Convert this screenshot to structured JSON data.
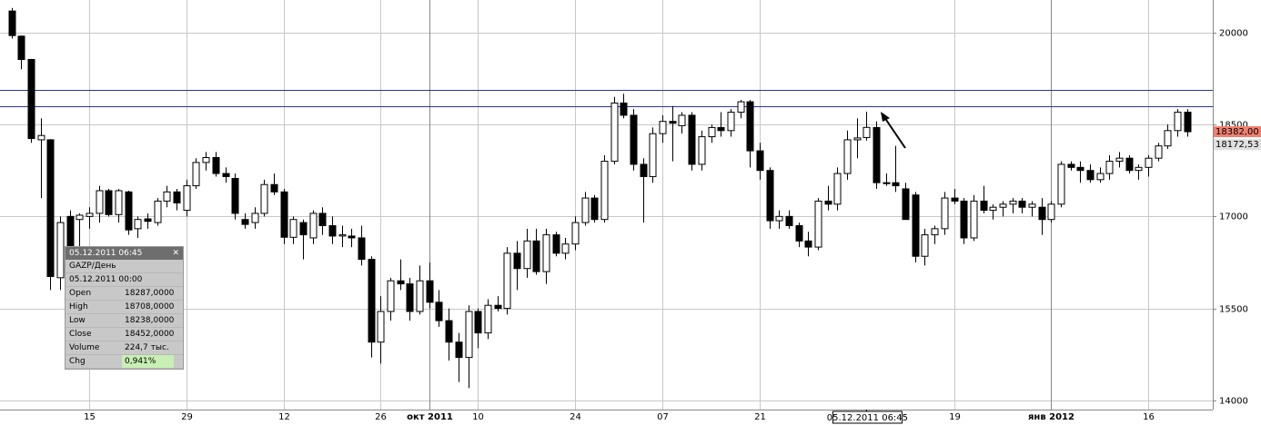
{
  "chart_data": {
    "type": "candlestick",
    "categories": [
      null,
      null,
      null,
      null,
      null,
      null,
      null,
      null,
      "15",
      null,
      null,
      null,
      null,
      null,
      null,
      null,
      null,
      null,
      "29",
      null,
      null,
      null,
      null,
      null,
      null,
      null,
      null,
      null,
      "12",
      null,
      null,
      null,
      null,
      null,
      null,
      null,
      null,
      null,
      "26",
      null,
      null,
      null,
      null,
      "окт 2011",
      null,
      null,
      null,
      null,
      "10",
      null,
      null,
      null,
      null,
      null,
      null,
      null,
      null,
      null,
      "24",
      null,
      null,
      null,
      null,
      null,
      null,
      null,
      null,
      "07",
      null,
      null,
      null,
      null,
      null,
      null,
      null,
      null,
      null,
      "21",
      null,
      null,
      null,
      null,
      null,
      null,
      null,
      null,
      null,
      null,
      null,
      null,
      null,
      null,
      null,
      null,
      null,
      null,
      null,
      "19",
      null,
      null,
      null,
      null,
      null,
      null,
      null,
      null,
      null,
      "янв 2012",
      null,
      null,
      null,
      null,
      null,
      null,
      null,
      null,
      null,
      "16",
      null,
      null,
      null,
      null
    ],
    "open": [
      20350,
      19940,
      19560,
      18250,
      18250,
      16000,
      17000,
      16950,
      17000,
      17050,
      17420,
      17030,
      17400,
      16800,
      16960,
      16900,
      17250,
      17400,
      17100,
      17500,
      17880,
      17960,
      17700,
      17620,
      16950,
      16900,
      17050,
      17520,
      17400,
      16660,
      16900,
      16650,
      17050,
      16850,
      16680,
      16680,
      16650,
      16300,
      14950,
      15450,
      15950,
      15900,
      15450,
      15950,
      15600,
      15300,
      14950,
      14700,
      15450,
      15100,
      15550,
      15500,
      16400,
      16150,
      16600,
      16100,
      16700,
      16400,
      16550,
      16900,
      17300,
      16950,
      17900,
      18850,
      18650,
      17850,
      17650,
      18350,
      18550,
      18480,
      18650,
      17850,
      18300,
      18450,
      18400,
      18700,
      18870,
      18070,
      17750,
      16930,
      17000,
      16850,
      16600,
      16500,
      17250,
      17200,
      17700,
      18250,
      18287,
      18450,
      17550,
      17550,
      17450,
      17350,
      16350,
      16700,
      16800,
      17300,
      17250,
      16650,
      17250,
      17100,
      17150,
      17200,
      17250,
      17150,
      17150,
      16950,
      17200,
      17850,
      17800,
      17750,
      17600,
      17700,
      17900,
      17950,
      17750,
      17800,
      17950,
      18150,
      18400,
      18700
    ],
    "high": [
      20400,
      19950,
      19570,
      18600,
      18260,
      17000,
      17100,
      17050,
      17150,
      17500,
      17450,
      17450,
      17420,
      17000,
      17050,
      17300,
      17500,
      17450,
      17600,
      17950,
      18050,
      18050,
      17800,
      17700,
      17050,
      17150,
      17600,
      17700,
      17450,
      17000,
      16950,
      17100,
      17150,
      17000,
      16850,
      16800,
      16850,
      16350,
      15700,
      16000,
      16300,
      16000,
      16200,
      16250,
      15800,
      15500,
      15100,
      15550,
      15500,
      15650,
      15700,
      16500,
      16600,
      16800,
      16800,
      16800,
      16750,
      16650,
      17000,
      17400,
      17350,
      18000,
      18950,
      19000,
      18750,
      17950,
      18450,
      18650,
      18800,
      18700,
      18700,
      18400,
      18500,
      18700,
      18750,
      18900,
      18900,
      18200,
      17800,
      17100,
      17100,
      16900,
      16750,
      17300,
      17500,
      17800,
      18400,
      18600,
      18708,
      18550,
      17700,
      18150,
      17550,
      17400,
      16800,
      16850,
      17400,
      17450,
      17300,
      17350,
      17500,
      17200,
      17250,
      17300,
      17300,
      17250,
      17300,
      17250,
      17900,
      17900,
      17900,
      17850,
      17800,
      18000,
      18050,
      18000,
      17850,
      18000,
      18200,
      18500,
      18750,
      18750
    ],
    "low": [
      19900,
      19400,
      18200,
      17300,
      15800,
      15800,
      15750,
      16500,
      16800,
      16900,
      17000,
      16900,
      16700,
      16650,
      16800,
      16850,
      17150,
      17100,
      17000,
      17450,
      17750,
      17650,
      17550,
      16950,
      16800,
      16800,
      17000,
      17350,
      16550,
      16550,
      16300,
      16550,
      16700,
      16550,
      16500,
      16500,
      16200,
      14700,
      14600,
      15300,
      15800,
      15300,
      15400,
      15500,
      15200,
      14650,
      14300,
      14200,
      14850,
      15000,
      15450,
      15400,
      15800,
      16000,
      16050,
      15900,
      16350,
      16300,
      16450,
      16850,
      16900,
      16900,
      17850,
      18600,
      17750,
      16900,
      17550,
      18200,
      17900,
      18350,
      17750,
      17750,
      18200,
      18300,
      18300,
      18600,
      17800,
      17600,
      16800,
      16800,
      16800,
      16500,
      16350,
      16450,
      17100,
      17100,
      17600,
      17950,
      18238,
      17450,
      17500,
      17400,
      16950,
      16250,
      16200,
      16550,
      16700,
      17200,
      16550,
      16600,
      17050,
      16950,
      17000,
      17050,
      17050,
      17000,
      16700,
      16900,
      17150,
      17750,
      17550,
      17550,
      17550,
      17600,
      17800,
      17700,
      17600,
      17650,
      17900,
      18100,
      18300,
      18300
    ],
    "close": [
      19950,
      19560,
      18270,
      18320,
      16020,
      16900,
      15870,
      17020,
      17050,
      17420,
      17030,
      17420,
      16780,
      16950,
      16920,
      17250,
      17400,
      17220,
      17500,
      17880,
      17960,
      17700,
      17650,
      17050,
      16870,
      17050,
      17520,
      17400,
      16660,
      16950,
      16700,
      17050,
      16850,
      16680,
      16700,
      16650,
      16300,
      14950,
      15450,
      15950,
      15900,
      15450,
      15950,
      15600,
      15300,
      14950,
      14700,
      15450,
      15100,
      15550,
      15500,
      16400,
      16150,
      16600,
      16100,
      16700,
      16400,
      16550,
      16900,
      17300,
      16950,
      17900,
      18850,
      18650,
      17850,
      17650,
      18350,
      18550,
      18520,
      18650,
      17850,
      18300,
      18450,
      18400,
      18700,
      18870,
      18070,
      17750,
      16930,
      17000,
      16850,
      16600,
      16500,
      17250,
      17200,
      17700,
      18250,
      18280,
      18452,
      17550,
      17550,
      17500,
      16950,
      16350,
      16700,
      16800,
      17300,
      17250,
      16650,
      17250,
      17100,
      17150,
      17200,
      17250,
      17150,
      17200,
      16950,
      17200,
      17850,
      17800,
      17750,
      17600,
      17700,
      17900,
      17950,
      17750,
      17800,
      17950,
      18150,
      18400,
      18700,
      18382
    ],
    "up_color": "#ffffff",
    "down_color": "#000000",
    "ylim": [
      13850,
      20530
    ],
    "yticks": [
      14000,
      15500,
      17000,
      18500,
      20000
    ],
    "grid": true,
    "hlines": [
      {
        "value": 19067,
        "color": "#3030a0"
      },
      {
        "value": 18800,
        "color": "#3030a0"
      }
    ],
    "price_labels": [
      {
        "value": 18382,
        "label": "18382,00",
        "color": "#f08070"
      },
      {
        "value": 18172.53,
        "label": "18172,53",
        "color": "#e0e0e0"
      }
    ],
    "cursor_index": 88,
    "cursor_label": "05.12.2011 06:45"
  },
  "tooltip": {
    "title": "05.12.2011 06:45",
    "close_icon": "✕",
    "symbol": "GAZP/День",
    "date": "05.12.2011 00:00",
    "rows": [
      [
        "Open",
        "18287,0000"
      ],
      [
        "High",
        "18708,0000"
      ],
      [
        "Low",
        "18238,0000"
      ],
      [
        "Close",
        "18452,0000"
      ],
      [
        "Volume",
        "224,7 тыс."
      ],
      [
        "Chg",
        "0,941%"
      ]
    ]
  }
}
